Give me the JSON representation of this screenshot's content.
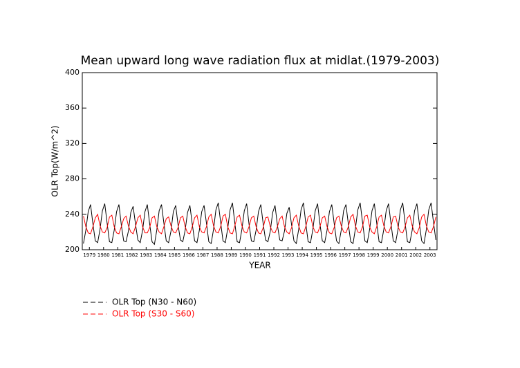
{
  "chart_data": {
    "type": "line",
    "title": "Mean upward long wave radiation flux at midlat.(1979-2003)",
    "xlabel": "YEAR",
    "ylabel": "OLR Top(W/m^2)",
    "xlim": [
      1979,
      2004
    ],
    "ylim": [
      200,
      400
    ],
    "yticks": [
      200,
      240,
      280,
      320,
      360,
      400
    ],
    "xticks": [
      {
        "value": 1979.5,
        "label": "1979"
      },
      {
        "value": 1980.5,
        "label": "1980"
      },
      {
        "value": 1981.5,
        "label": "1981"
      },
      {
        "value": 1982.5,
        "label": "1982"
      },
      {
        "value": 1983.5,
        "label": "1983"
      },
      {
        "value": 1984.5,
        "label": "1984"
      },
      {
        "value": 1985.5,
        "label": "1985"
      },
      {
        "value": 1986.5,
        "label": "1986"
      },
      {
        "value": 1987.5,
        "label": "1987"
      },
      {
        "value": 1988.5,
        "label": "1988"
      },
      {
        "value": 1989.5,
        "label": "1989"
      },
      {
        "value": 1990.5,
        "label": "1990"
      },
      {
        "value": 1991.5,
        "label": "1991"
      },
      {
        "value": 1992.5,
        "label": "1992"
      },
      {
        "value": 1993.5,
        "label": "1993"
      },
      {
        "value": 1994.5,
        "label": "1994"
      },
      {
        "value": 1995.5,
        "label": "1995"
      },
      {
        "value": 1996.5,
        "label": "1996"
      },
      {
        "value": 1997.5,
        "label": "1997"
      },
      {
        "value": 1998.5,
        "label": "1998"
      },
      {
        "value": 1999.5,
        "label": "1999"
      },
      {
        "value": 2000.5,
        "label": "2000"
      },
      {
        "value": 2001.5,
        "label": "2001"
      },
      {
        "value": 2002.5,
        "label": "2002"
      },
      {
        "value": 2003.5,
        "label": "2003"
      }
    ],
    "x": [
      1979.083,
      1979.25,
      1979.417,
      1979.583,
      1979.75,
      1979.917,
      1980.083,
      1980.25,
      1980.417,
      1980.583,
      1980.75,
      1980.917,
      1981.083,
      1981.25,
      1981.417,
      1981.583,
      1981.75,
      1981.917,
      1982.083,
      1982.25,
      1982.417,
      1982.583,
      1982.75,
      1982.917,
      1983.083,
      1983.25,
      1983.417,
      1983.583,
      1983.75,
      1983.917,
      1984.083,
      1984.25,
      1984.417,
      1984.583,
      1984.75,
      1984.917,
      1985.083,
      1985.25,
      1985.417,
      1985.583,
      1985.75,
      1985.917,
      1986.083,
      1986.25,
      1986.417,
      1986.583,
      1986.75,
      1986.917,
      1987.083,
      1987.25,
      1987.417,
      1987.583,
      1987.75,
      1987.917,
      1988.083,
      1988.25,
      1988.417,
      1988.583,
      1988.75,
      1988.917,
      1989.083,
      1989.25,
      1989.417,
      1989.583,
      1989.75,
      1989.917,
      1990.083,
      1990.25,
      1990.417,
      1990.583,
      1990.75,
      1990.917,
      1991.083,
      1991.25,
      1991.417,
      1991.583,
      1991.75,
      1991.917,
      1992.083,
      1992.25,
      1992.417,
      1992.583,
      1992.75,
      1992.917,
      1993.083,
      1993.25,
      1993.417,
      1993.583,
      1993.75,
      1993.917,
      1994.083,
      1994.25,
      1994.417,
      1994.583,
      1994.75,
      1994.917,
      1995.083,
      1995.25,
      1995.417,
      1995.583,
      1995.75,
      1995.917,
      1996.083,
      1996.25,
      1996.417,
      1996.583,
      1996.75,
      1996.917,
      1997.083,
      1997.25,
      1997.417,
      1997.583,
      1997.75,
      1997.917,
      1998.083,
      1998.25,
      1998.417,
      1998.583,
      1998.75,
      1998.917,
      1999.083,
      1999.25,
      1999.417,
      1999.583,
      1999.75,
      1999.917,
      2000.083,
      2000.25,
      2000.417,
      2000.583,
      2000.75,
      2000.917,
      2001.083,
      2001.25,
      2001.417,
      2001.583,
      2001.75,
      2001.917,
      2002.083,
      2002.25,
      2002.417,
      2002.583,
      2002.75,
      2002.917,
      2003.083,
      2003.25,
      2003.417,
      2003.583,
      2003.75,
      2003.917
    ],
    "series": [
      {
        "name": "OLR Top (N30 - N60)",
        "color": "#000000",
        "values": [
          207,
          222,
          243,
          251,
          229,
          210,
          208,
          223,
          244,
          252,
          230,
          209,
          208,
          222,
          243,
          251,
          228,
          210,
          209,
          221,
          242,
          249,
          229,
          211,
          208,
          222,
          243,
          251,
          229,
          209,
          206,
          222,
          244,
          251,
          230,
          210,
          208,
          221,
          243,
          250,
          228,
          211,
          209,
          222,
          242,
          250,
          229,
          210,
          208,
          222,
          243,
          250,
          230,
          209,
          207,
          223,
          245,
          253,
          231,
          210,
          208,
          224,
          245,
          253,
          230,
          209,
          208,
          223,
          244,
          252,
          229,
          210,
          209,
          222,
          243,
          251,
          229,
          211,
          209,
          221,
          242,
          250,
          228,
          211,
          210,
          221,
          241,
          248,
          228,
          210,
          207,
          223,
          245,
          253,
          230,
          209,
          208,
          223,
          244,
          252,
          229,
          210,
          208,
          222,
          243,
          251,
          230,
          210,
          207,
          222,
          244,
          251,
          229,
          209,
          207,
          224,
          245,
          253,
          231,
          210,
          208,
          223,
          244,
          252,
          230,
          209,
          208,
          223,
          244,
          252,
          230,
          210,
          208,
          223,
          245,
          253,
          230,
          209,
          208,
          222,
          244,
          252,
          230,
          210,
          207,
          223,
          245,
          253,
          231,
          211
        ]
      },
      {
        "name": "OLR Top (S30 - S60)",
        "color": "#ff0000",
        "values": [
          238,
          226,
          219,
          218,
          226,
          236,
          240,
          227,
          220,
          219,
          225,
          237,
          239,
          226,
          219,
          218,
          226,
          235,
          238,
          227,
          220,
          218,
          226,
          236,
          239,
          226,
          219,
          219,
          225,
          236,
          238,
          226,
          220,
          218,
          226,
          235,
          237,
          227,
          220,
          219,
          225,
          236,
          238,
          226,
          219,
          218,
          226,
          236,
          239,
          226,
          220,
          219,
          226,
          237,
          240,
          227,
          220,
          219,
          226,
          238,
          240,
          226,
          219,
          218,
          227,
          237,
          239,
          227,
          220,
          219,
          226,
          236,
          238,
          226,
          219,
          218,
          225,
          236,
          237,
          226,
          220,
          219,
          226,
          235,
          238,
          226,
          220,
          218,
          225,
          236,
          239,
          227,
          219,
          218,
          226,
          237,
          239,
          226,
          220,
          219,
          226,
          236,
          238,
          226,
          219,
          218,
          225,
          236,
          238,
          227,
          220,
          219,
          226,
          237,
          240,
          227,
          220,
          219,
          226,
          238,
          239,
          226,
          220,
          218,
          226,
          237,
          239,
          227,
          220,
          219,
          226,
          237,
          238,
          226,
          220,
          219,
          226,
          236,
          239,
          227,
          220,
          218,
          225,
          237,
          240,
          227,
          220,
          219,
          226,
          237
        ]
      }
    ]
  }
}
